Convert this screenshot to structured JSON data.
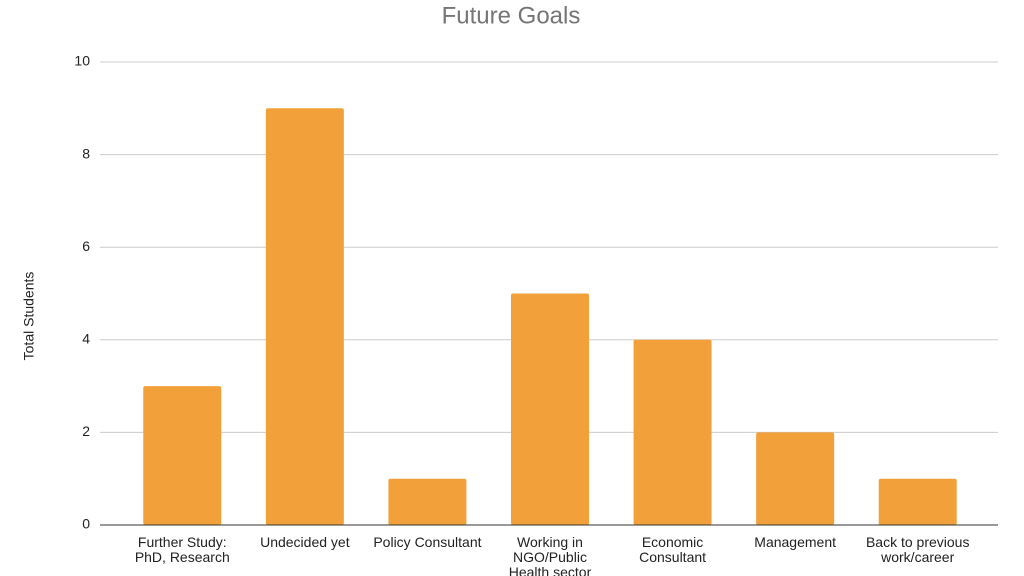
{
  "chart_data": {
    "type": "bar",
    "title": "Future Goals",
    "y_label": "Total Students",
    "categories": [
      "Further Study: PhD, Research",
      "Undecided yet",
      "Policy Consultant",
      "Working in NGO/Public Health sector",
      "Economic Consultant",
      "Management",
      "Back to previous work/career"
    ],
    "values": [
      3,
      9,
      1,
      5,
      4,
      2,
      1
    ],
    "color": "#f1a03a",
    "ylim": [
      0,
      10
    ],
    "yticks": [
      0,
      2,
      4,
      6,
      8,
      10
    ],
    "grid": true
  }
}
